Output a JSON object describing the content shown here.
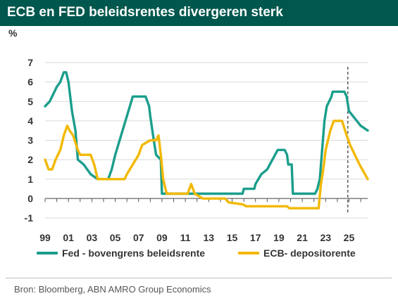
{
  "header": {
    "title": "ECB en FED beleidsrentes divergeren sterk"
  },
  "colors": {
    "header_bg": "#00574d",
    "fed": "#1a9e8c",
    "ecb": "#f2b800",
    "grid": "#d9d9d9"
  },
  "footer": {
    "source": "Bron: Bloomberg, ABN AMRO Group Economics"
  },
  "chart_data": {
    "type": "line",
    "ylabel": "%",
    "title": "ECB en FED beleidsrentes divergeren sterk",
    "xlim": [
      1999,
      2026.6
    ],
    "ylim": [
      -1,
      7
    ],
    "yticks": [
      -1,
      0,
      1,
      2,
      3,
      4,
      5,
      6,
      7
    ],
    "xticks": [
      {
        "value": 1999,
        "label": "99"
      },
      {
        "value": 2001,
        "label": "01"
      },
      {
        "value": 2003,
        "label": "03"
      },
      {
        "value": 2005,
        "label": "05"
      },
      {
        "value": 2007,
        "label": "07"
      },
      {
        "value": 2009,
        "label": "09"
      },
      {
        "value": 2011,
        "label": "11"
      },
      {
        "value": 2013,
        "label": "13"
      },
      {
        "value": 2015,
        "label": "15"
      },
      {
        "value": 2017,
        "label": "17"
      },
      {
        "value": 2019,
        "label": "19"
      },
      {
        "value": 2021,
        "label": "21"
      },
      {
        "value": 2023,
        "label": "23"
      },
      {
        "value": 2025,
        "label": "25"
      }
    ],
    "forecast_marker_x": 2024.9,
    "legend_placement": "bottom",
    "series": [
      {
        "name": "Fed - bovengrens beleidsrente",
        "color": "#1a9e8c",
        "x": [
          1999.0,
          1999.4,
          1999.8,
          2000.0,
          2000.3,
          2000.6,
          2000.8,
          2001.0,
          2001.3,
          2001.6,
          2001.8,
          2002.3,
          2002.9,
          2003.5,
          2004.4,
          2004.7,
          2005.0,
          2005.5,
          2006.0,
          2006.5,
          2007.6,
          2007.9,
          2008.0,
          2008.3,
          2008.5,
          2008.9,
          2009.0,
          2015.9,
          2016.0,
          2016.9,
          2017.0,
          2017.5,
          2018.0,
          2018.9,
          2019.5,
          2019.7,
          2019.8,
          2020.1,
          2020.2,
          2022.1,
          2022.3,
          2022.5,
          2022.7,
          2022.9,
          2023.1,
          2023.5,
          2023.6,
          2024.6,
          2024.8,
          2025.0,
          2026.0,
          2026.6
        ],
        "y": [
          4.75,
          5.0,
          5.5,
          5.75,
          6.0,
          6.5,
          6.5,
          6.0,
          4.5,
          3.5,
          2.0,
          1.75,
          1.25,
          1.0,
          1.0,
          1.5,
          2.25,
          3.25,
          4.25,
          5.25,
          5.25,
          4.75,
          4.25,
          3.0,
          2.25,
          2.0,
          0.25,
          0.25,
          0.5,
          0.5,
          0.75,
          1.25,
          1.5,
          2.5,
          2.5,
          2.25,
          1.75,
          1.75,
          0.25,
          0.25,
          0.5,
          1.0,
          2.5,
          4.0,
          4.75,
          5.25,
          5.5,
          5.5,
          5.25,
          4.5,
          3.75,
          3.5
        ]
      },
      {
        "name": "ECB- depositorente",
        "color": "#f2b800",
        "x": [
          1999.0,
          1999.3,
          1999.6,
          1999.9,
          2000.3,
          2000.6,
          2000.9,
          2001.1,
          2001.4,
          2001.8,
          2002.0,
          2002.9,
          2003.2,
          2003.5,
          2005.8,
          2006.0,
          2006.5,
          2007.0,
          2007.3,
          2008.0,
          2008.5,
          2008.7,
          2008.9,
          2009.1,
          2009.4,
          2011.2,
          2011.5,
          2011.8,
          2012.5,
          2014.4,
          2014.7,
          2015.9,
          2016.2,
          2019.7,
          2019.9,
          2022.4,
          2022.6,
          2022.8,
          2023.0,
          2023.4,
          2023.7,
          2024.4,
          2024.8,
          2025.1,
          2025.5,
          2025.9,
          2026.6
        ],
        "y": [
          2.0,
          1.5,
          1.5,
          2.0,
          2.5,
          3.25,
          3.75,
          3.5,
          3.25,
          2.5,
          2.25,
          2.25,
          1.75,
          1.0,
          1.0,
          1.25,
          1.75,
          2.25,
          2.75,
          3.0,
          3.0,
          3.25,
          2.25,
          1.0,
          0.25,
          0.25,
          0.75,
          0.25,
          0.0,
          0.0,
          -0.2,
          -0.3,
          -0.4,
          -0.4,
          -0.5,
          -0.5,
          0.75,
          1.5,
          2.5,
          3.5,
          4.0,
          4.0,
          3.25,
          2.75,
          2.25,
          1.75,
          1.0
        ]
      }
    ]
  }
}
